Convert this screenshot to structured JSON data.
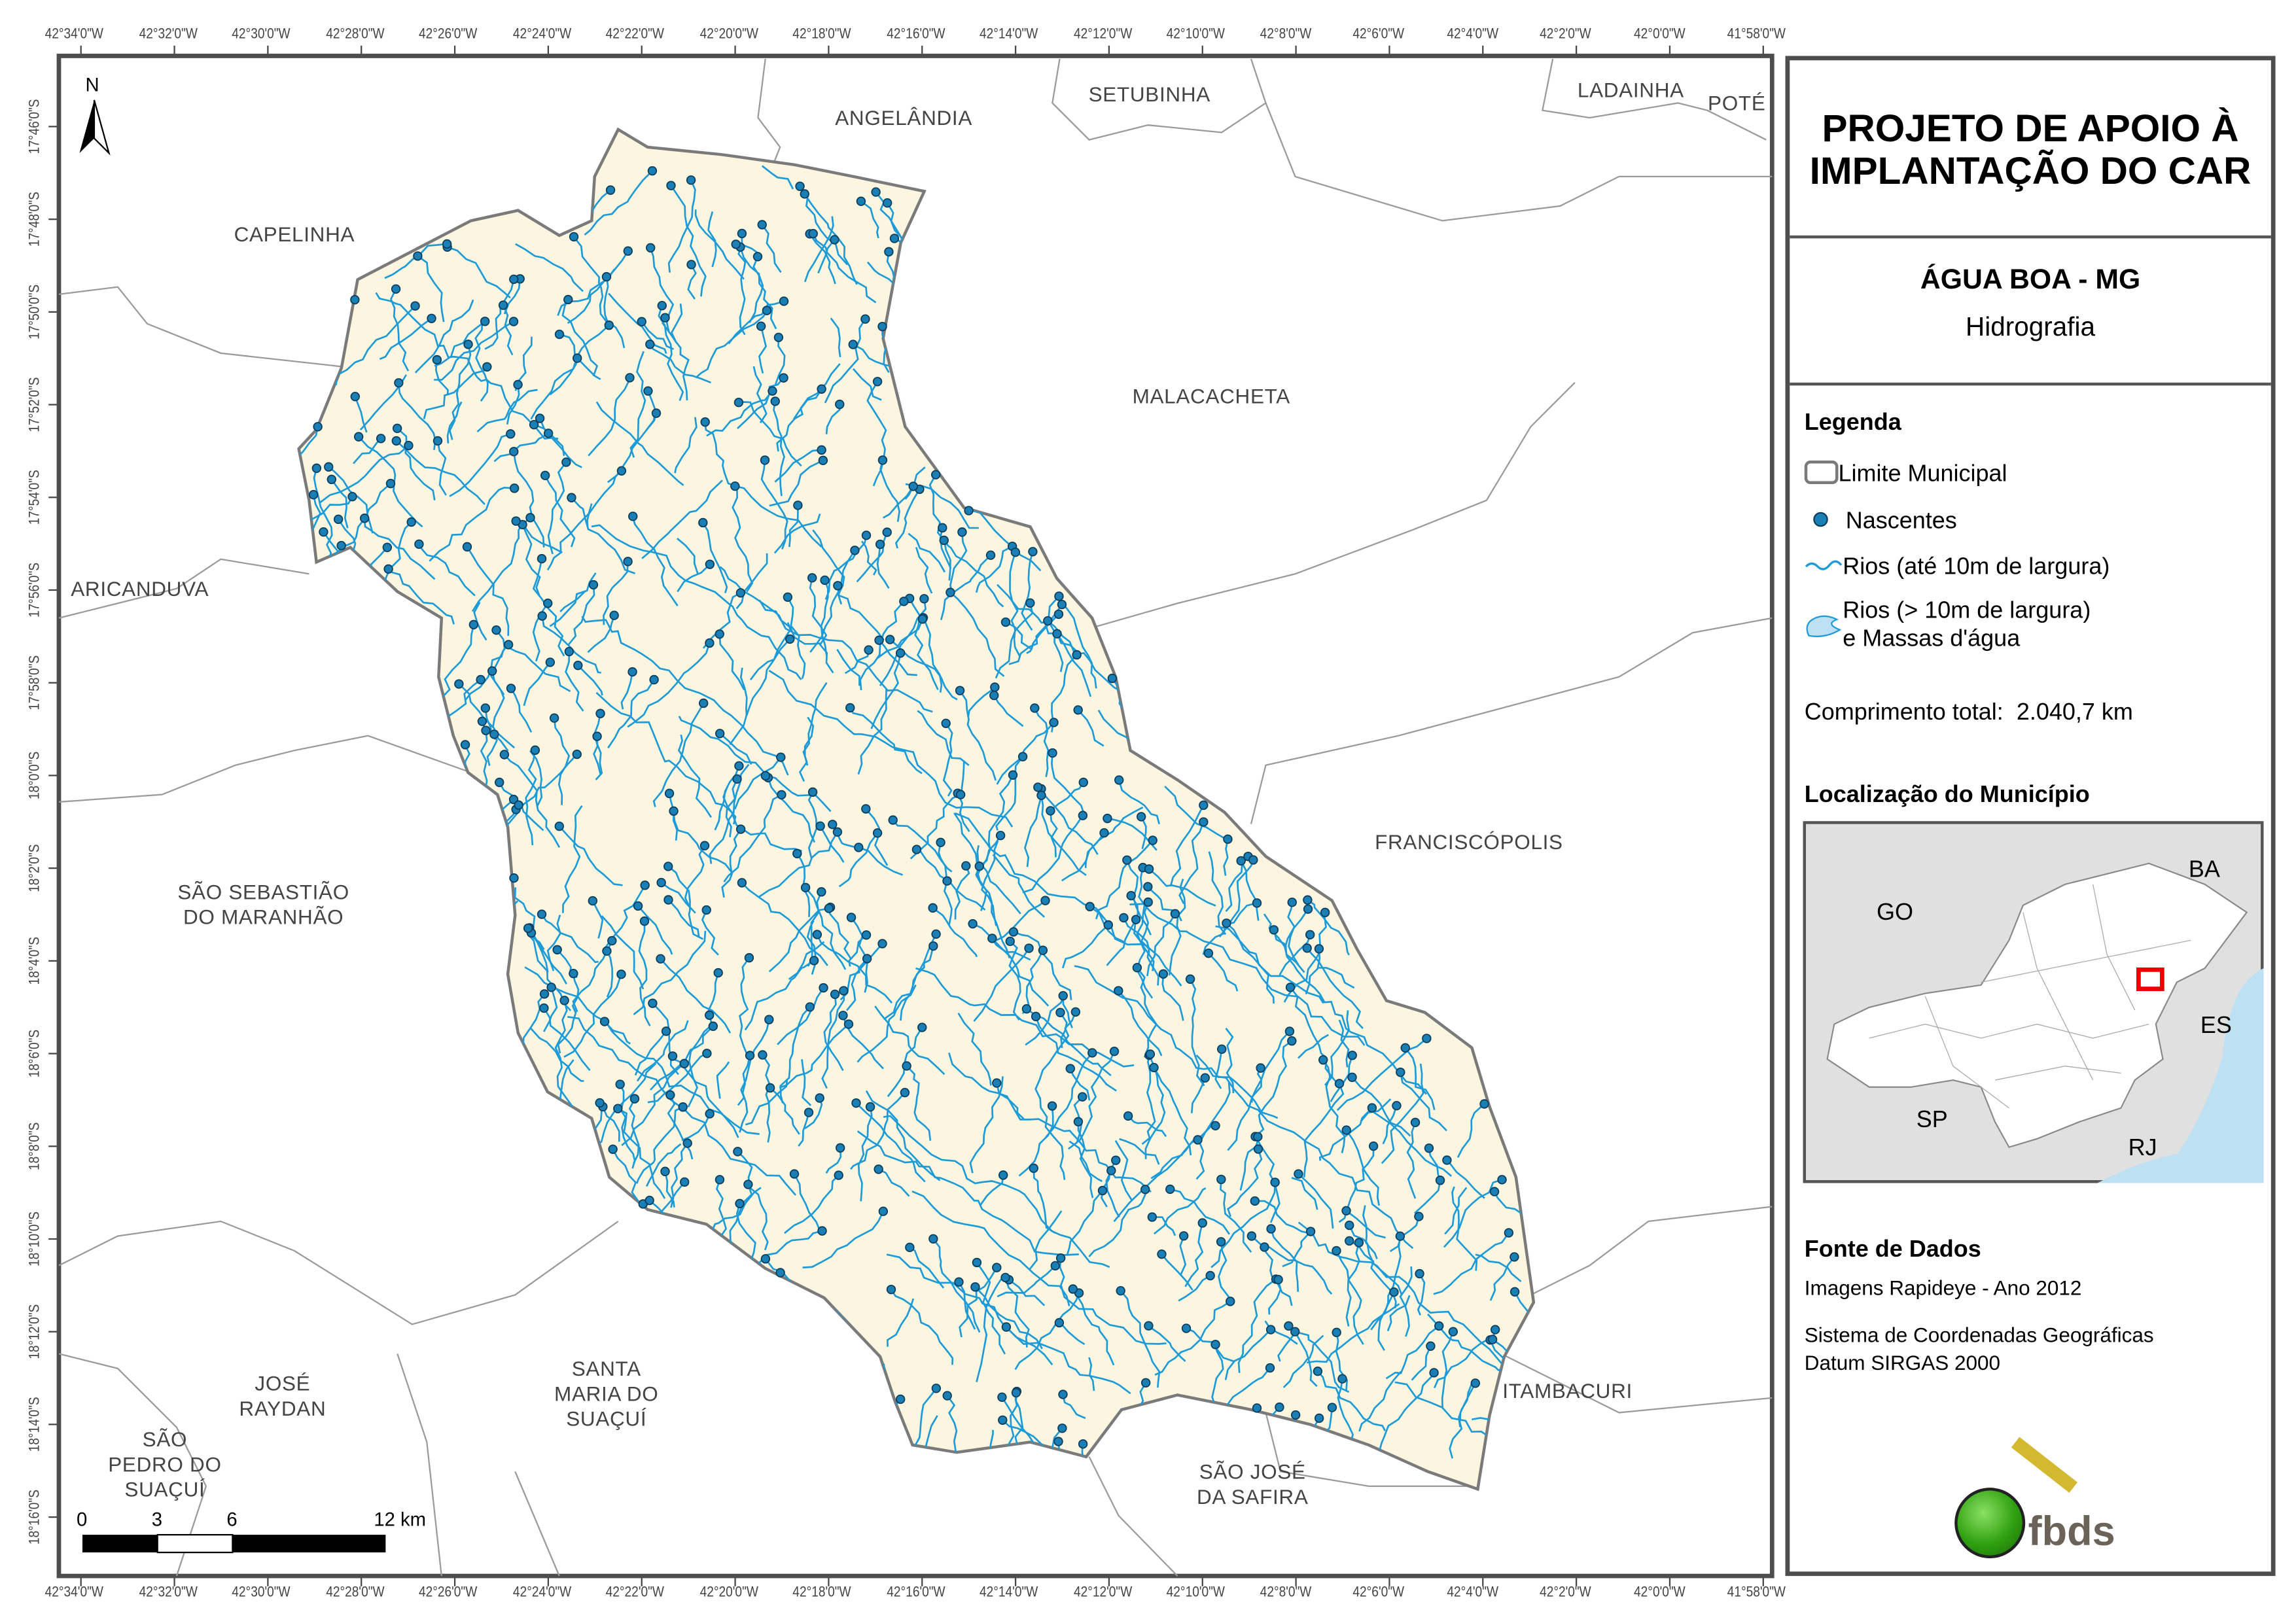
{
  "map": {
    "lon_labels": [
      "42°34'0\"W",
      "42°32'0\"W",
      "42°30'0\"W",
      "42°28'0\"W",
      "42°26'0\"W",
      "42°24'0\"W",
      "42°22'0\"W",
      "42°20'0\"W",
      "42°18'0\"W",
      "42°16'0\"W",
      "42°14'0\"W",
      "42°12'0\"W",
      "42°10'0\"W",
      "42°8'0\"W",
      "42°6'0\"W",
      "42°4'0\"W",
      "42°2'0\"W",
      "42°0'0\"W",
      "41°58'0\"W"
    ],
    "lat_labels": [
      "17°46'0\"S",
      "17°48'0\"S",
      "17°50'0\"S",
      "17°52'0\"S",
      "17°54'0\"S",
      "17°56'0\"S",
      "17°58'0\"S",
      "18°0'0\"S",
      "18°2'0\"S",
      "18°4'0\"S",
      "18°6'0\"S",
      "18°8'0\"S",
      "18°10'0\"S",
      "18°12'0\"S",
      "18°14'0\"S",
      "18°16'0\"S"
    ],
    "neighbors": [
      {
        "name": "ANGELÂNDIA"
      },
      {
        "name": "SETUBINHA"
      },
      {
        "name": "LADAINHA"
      },
      {
        "name": "POTÉ"
      },
      {
        "name": "CAPELINHA"
      },
      {
        "name": "MALACACHETA"
      },
      {
        "name": "ARICANDUVA"
      },
      {
        "name": "FRANCISCÓPOLIS"
      },
      {
        "name": "SÃO SEBASTIÃO\nDO MARANHÃO"
      },
      {
        "name": "JOSÉ\nRAYDAN"
      },
      {
        "name": "SANTA\nMARIA DO\nSUAÇUÍ"
      },
      {
        "name": "SÃO JOSÉ\nDA SAFIRA"
      },
      {
        "name": "ITAMBACURI"
      },
      {
        "name": "SÃO\nPEDRO DO\nSUAÇUÍ"
      }
    ],
    "north_label": "N",
    "scale_labels": [
      "0",
      "3",
      "6",
      "12 km"
    ],
    "colors": {
      "municipality_fill": "#fcf6e0",
      "river": "#1e9bd7",
      "spring": "#1a7fb5",
      "boundary": "#7a7a7a",
      "water": "#bde0f3"
    }
  },
  "panel": {
    "title": "PROJETO DE APOIO À IMPLANTAÇÃO DO CAR",
    "municipality": "ÁGUA BOA - MG",
    "theme": "Hidrografia",
    "legend_title": "Legenda",
    "legend": [
      {
        "icon": "boundary-swatch-icon",
        "label": "Limite Municipal"
      },
      {
        "icon": "spring-dot-icon",
        "label": "Nascentes"
      },
      {
        "icon": "river-line-icon",
        "label": "Rios (até 10m de largura)"
      },
      {
        "icon": "water-body-icon",
        "label": "Rios (> 10m de largura)",
        "label2": "e Massas d'água"
      }
    ],
    "total_length_label": "Comprimento total:",
    "total_length_value": "2.040,7 km",
    "location_title": "Localização do Município",
    "inset_labels": [
      "GO",
      "BA",
      "ES",
      "SP",
      "RJ"
    ],
    "source_title": "Fonte de Dados",
    "source_lines": [
      "Imagens Rapideye - Ano 2012",
      "Sistema de Coordenadas Geográficas",
      "Datum SIRGAS 2000"
    ],
    "logo_text": "fbds"
  }
}
